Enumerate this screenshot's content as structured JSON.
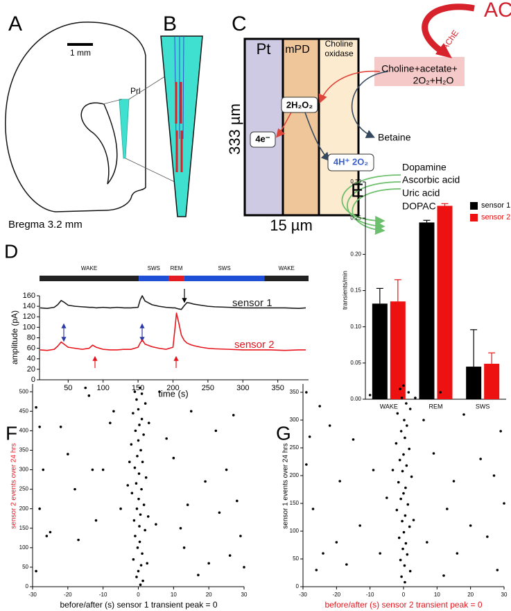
{
  "figure": {
    "panel_a": {
      "label": "A",
      "scale": "1 mm",
      "region": "Prl",
      "bregma": "Bregma 3.2 mm"
    },
    "panel_b": {
      "label": "B"
    },
    "panel_c": {
      "label": "C",
      "layer1": "Pt",
      "layer2": "mPD",
      "layer3": [
        "Choline",
        "oxidase"
      ],
      "height": "333 µm",
      "width": "15 µm",
      "ach": "ACh",
      "ache": "AChE",
      "substrate": [
        "Choline+acetate+",
        "2O₂+H₂O"
      ],
      "peroxide": "2H₂O₂",
      "electrons": "4e⁻",
      "products": "4H⁺ 2O₂",
      "betaine": "Betaine",
      "interferents": [
        "Dopamine",
        "Ascorbic acid",
        "Uric acid",
        "DOPAC"
      ]
    }
  },
  "chart_data": [
    {
      "type": "line",
      "label": "D",
      "xlabel": "time (s)",
      "ylabel": "amplitude (pA)",
      "xlim": [
        9,
        394
      ],
      "xticks": [
        50,
        100,
        150,
        200,
        250,
        300,
        350
      ],
      "ylim": [
        0,
        160
      ],
      "yticks": [
        0,
        20,
        40,
        60,
        80,
        100,
        120,
        140,
        160
      ],
      "states": [
        {
          "label": "WAKE",
          "start": 9,
          "end": 151,
          "color": "#222222"
        },
        {
          "label": "SWS",
          "start": 151,
          "end": 194,
          "color": "#1f4fd6"
        },
        {
          "label": "REM",
          "start": 194,
          "end": 216,
          "color": "#e31b23"
        },
        {
          "label": "SWS",
          "start": 216,
          "end": 331,
          "color": "#1f4fd6"
        },
        {
          "label": "WAKE",
          "start": 331,
          "end": 394,
          "color": "#222222"
        }
      ],
      "x": [
        10,
        20,
        30,
        35,
        40,
        45,
        50,
        60,
        70,
        80,
        85,
        90,
        100,
        110,
        120,
        130,
        140,
        150,
        153,
        156,
        160,
        170,
        180,
        190,
        200,
        203,
        205,
        208,
        212,
        216,
        220,
        225,
        230,
        240,
        250,
        260,
        280,
        300,
        320,
        340,
        360,
        380,
        390
      ],
      "series": [
        {
          "name": "sensor 1",
          "color": "#1a1a1a",
          "values": [
            137,
            136,
            138,
            143,
            151,
            147,
            142,
            140,
            139,
            138,
            138,
            137,
            138,
            137,
            138,
            137,
            137,
            138,
            152,
            160,
            150,
            143,
            140,
            138,
            137,
            137,
            136,
            135,
            134,
            141,
            147,
            146,
            144,
            142,
            140,
            139,
            138,
            137,
            137,
            137,
            137,
            136,
            137
          ]
        },
        {
          "name": "sensor 2",
          "color": "#e8141c",
          "values": [
            57,
            56,
            58,
            64,
            72,
            67,
            62,
            60,
            58,
            60,
            66,
            62,
            58,
            57,
            57,
            58,
            58,
            62,
            70,
            76,
            68,
            63,
            60,
            58,
            62,
            100,
            127,
            110,
            85,
            75,
            70,
            67,
            65,
            62,
            60,
            59,
            58,
            57,
            57,
            57,
            56,
            57,
            57
          ]
        }
      ]
    },
    {
      "type": "bar",
      "label": "E",
      "ylabel": "transients/min",
      "categories": [
        "WAKE",
        "REM",
        "SWS"
      ],
      "ylim": [
        0,
        0.3
      ],
      "yticks": [
        {
          "value": 0,
          "label": "0.00"
        },
        {
          "value": 0.05,
          "label": "0.05"
        },
        {
          "value": 0.1,
          "label": "0.10"
        },
        {
          "value": 0.15,
          "label": "0.15"
        },
        {
          "value": 0.2,
          "label": "0.20"
        },
        {
          "value": 0.25,
          "label": "0.25"
        },
        {
          "value": 0.3,
          "label": "0.30"
        }
      ],
      "legend": "upper right",
      "series": [
        {
          "name": "sensor 1",
          "color": "#000000",
          "values": [
            0.132,
            0.244,
            0.045
          ],
          "errors": [
            0.021,
            0.003,
            0.051
          ]
        },
        {
          "name": "sensor 2",
          "color": "#ee1111",
          "values": [
            0.135,
            0.267,
            0.049
          ],
          "errors": [
            0.03,
            0.003,
            0.015
          ]
        }
      ]
    },
    {
      "type": "scatter",
      "label": "F",
      "xlabel": "before/after (s) sensor 1 transient peak = 0",
      "ylabel": "sensor 2 events over 24 hrs",
      "xlabel_color": "#000000",
      "ylabel_color": "#e8141c",
      "color": "#000000",
      "xlim": [
        -30,
        30
      ],
      "xticks": [
        -30,
        -20,
        -10,
        0,
        10,
        20,
        30
      ],
      "ylim": [
        0,
        520
      ],
      "yticks": [
        0,
        50,
        100,
        150,
        200,
        250,
        300,
        350,
        400,
        450,
        500
      ],
      "x": [
        0.5,
        -1,
        1,
        -0.5,
        2,
        0,
        -1.5,
        1,
        0.3,
        -0.8,
        1.5,
        0,
        -2,
        0.7,
        -0.3,
        1.2,
        -1,
        0.2,
        2.2,
        -0.6,
        0.9,
        -1.8,
        0.1,
        1.6,
        -0.4,
        0.6,
        -1.2,
        0.3,
        1.9,
        -0.9,
        0.4,
        -0.2,
        1.1,
        -1.4,
        0.8,
        0,
        -0.5,
        1.3,
        0.6,
        -2.5,
        2.8,
        3,
        -3,
        2.5,
        -29,
        -28,
        -27,
        -28,
        -26,
        -25,
        -29,
        -22,
        -20,
        -18,
        -17,
        -15,
        -14,
        -12,
        -10,
        -8,
        -5,
        -7,
        6,
        8,
        10,
        12,
        14,
        15,
        17,
        19,
        20,
        22,
        23,
        25,
        26,
        27,
        28,
        29,
        30,
        13,
        -13,
        5
      ],
      "y": [
        510,
        500,
        495,
        480,
        470,
        455,
        445,
        430,
        415,
        400,
        390,
        375,
        365,
        350,
        335,
        320,
        305,
        290,
        280,
        265,
        250,
        240,
        225,
        210,
        200,
        185,
        170,
        155,
        145,
        130,
        115,
        100,
        85,
        70,
        55,
        40,
        25,
        15,
        5,
        320,
        180,
        420,
        260,
        60,
        460,
        410,
        300,
        200,
        130,
        140,
        40,
        410,
        340,
        250,
        120,
        510,
        490,
        170,
        300,
        420,
        200,
        450,
        500,
        380,
        330,
        150,
        210,
        450,
        30,
        270,
        60,
        400,
        190,
        300,
        80,
        440,
        220,
        130,
        50,
        100,
        300,
        160
      ]
    },
    {
      "type": "scatter",
      "label": "G",
      "xlabel": "before/after (s) sensor 2 transient peak = 0",
      "ylabel": "sensor 1 events over 24 hrs",
      "xlabel_color": "#e8141c",
      "ylabel_color": "#000000",
      "color": "#000000",
      "xlim": [
        -30,
        30
      ],
      "xticks": [
        -30,
        -20,
        -10,
        0,
        10,
        20,
        30
      ],
      "ylim": [
        0,
        365
      ],
      "yticks": [
        0,
        50,
        100,
        150,
        200,
        250,
        300,
        350
      ],
      "x": [
        0,
        -1,
        1.5,
        -0.5,
        0.8,
        2,
        -1.8,
        0.2,
        1,
        -0.7,
        0.4,
        -2.2,
        1.7,
        0,
        -1.1,
        0.9,
        -0.3,
        2.4,
        -1.5,
        0.6,
        0,
        -0.8,
        1.3,
        -2,
        0.5,
        -0.4,
        1.8,
        0.1,
        -1.3,
        0.7,
        -0.2,
        1.1,
        -0.9,
        0.3,
        2,
        -0.6,
        0.4,
        3.5,
        -3.2,
        3,
        -29,
        -28,
        -29,
        -27,
        -26,
        -25,
        -22,
        -20,
        -19,
        -17,
        -15,
        -13,
        -10,
        -9,
        -7,
        -5,
        6,
        7,
        9,
        11,
        13,
        15,
        16,
        18,
        20,
        22,
        23,
        25,
        27,
        28,
        29,
        30,
        -24,
        12
      ],
      "y": [
        362,
        356,
        350,
        340,
        330,
        320,
        312,
        300,
        290,
        280,
        268,
        258,
        248,
        238,
        228,
        218,
        208,
        198,
        188,
        178,
        168,
        158,
        148,
        138,
        128,
        118,
        108,
        98,
        88,
        78,
        68,
        58,
        48,
        38,
        28,
        18,
        8,
        340,
        210,
        120,
        350,
        270,
        220,
        140,
        30,
        325,
        290,
        80,
        190,
        40,
        265,
        110,
        345,
        210,
        60,
        160,
        300,
        80,
        240,
        350,
        140,
        190,
        60,
        310,
        110,
        340,
        230,
        90,
        200,
        30,
        280,
        150,
        60,
        20
      ]
    }
  ]
}
